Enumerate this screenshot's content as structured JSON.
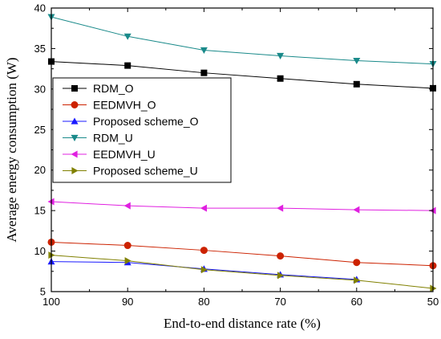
{
  "chart_data": {
    "type": "line",
    "title": "",
    "xlabel": "End-to-end distance rate (%)",
    "ylabel": "Average energy consumption (W)",
    "x": [
      100,
      90,
      80,
      70,
      60,
      50
    ],
    "xlim": [
      100,
      50
    ],
    "ylim": [
      5,
      40
    ],
    "x_ticks": [
      "100",
      "90",
      "80",
      "70",
      "60",
      "50"
    ],
    "y_ticks": [
      "5",
      "10",
      "15",
      "20",
      "25",
      "30",
      "35",
      "40"
    ],
    "grid": false,
    "legend_position": "left",
    "series": [
      {
        "name": "RDM_O",
        "values": [
          33.4,
          32.9,
          32.0,
          31.3,
          30.6,
          30.1
        ],
        "color": "#000000",
        "marker": "square"
      },
      {
        "name": "EEDMVH_O",
        "values": [
          11.1,
          10.7,
          10.1,
          9.4,
          8.6,
          8.2
        ],
        "color": "#cc2200",
        "marker": "circle"
      },
      {
        "name": "Proposed scheme_O",
        "values": [
          8.7,
          8.6,
          7.8,
          7.1,
          6.5,
          null
        ],
        "color": "#1a1aff",
        "marker": "triangle-up"
      },
      {
        "name": "RDM_U",
        "values": [
          38.9,
          36.5,
          34.8,
          34.1,
          33.5,
          33.1
        ],
        "color": "#1a8a8a",
        "marker": "triangle-down"
      },
      {
        "name": "EEDMVH_U",
        "values": [
          16.1,
          15.6,
          15.3,
          15.3,
          15.1,
          15.0
        ],
        "color": "#e020e0",
        "marker": "triangle-left"
      },
      {
        "name": "Proposed scheme_U",
        "values": [
          9.5,
          8.8,
          7.7,
          7.0,
          6.4,
          5.4
        ],
        "color": "#808000",
        "marker": "triangle-right"
      }
    ]
  }
}
